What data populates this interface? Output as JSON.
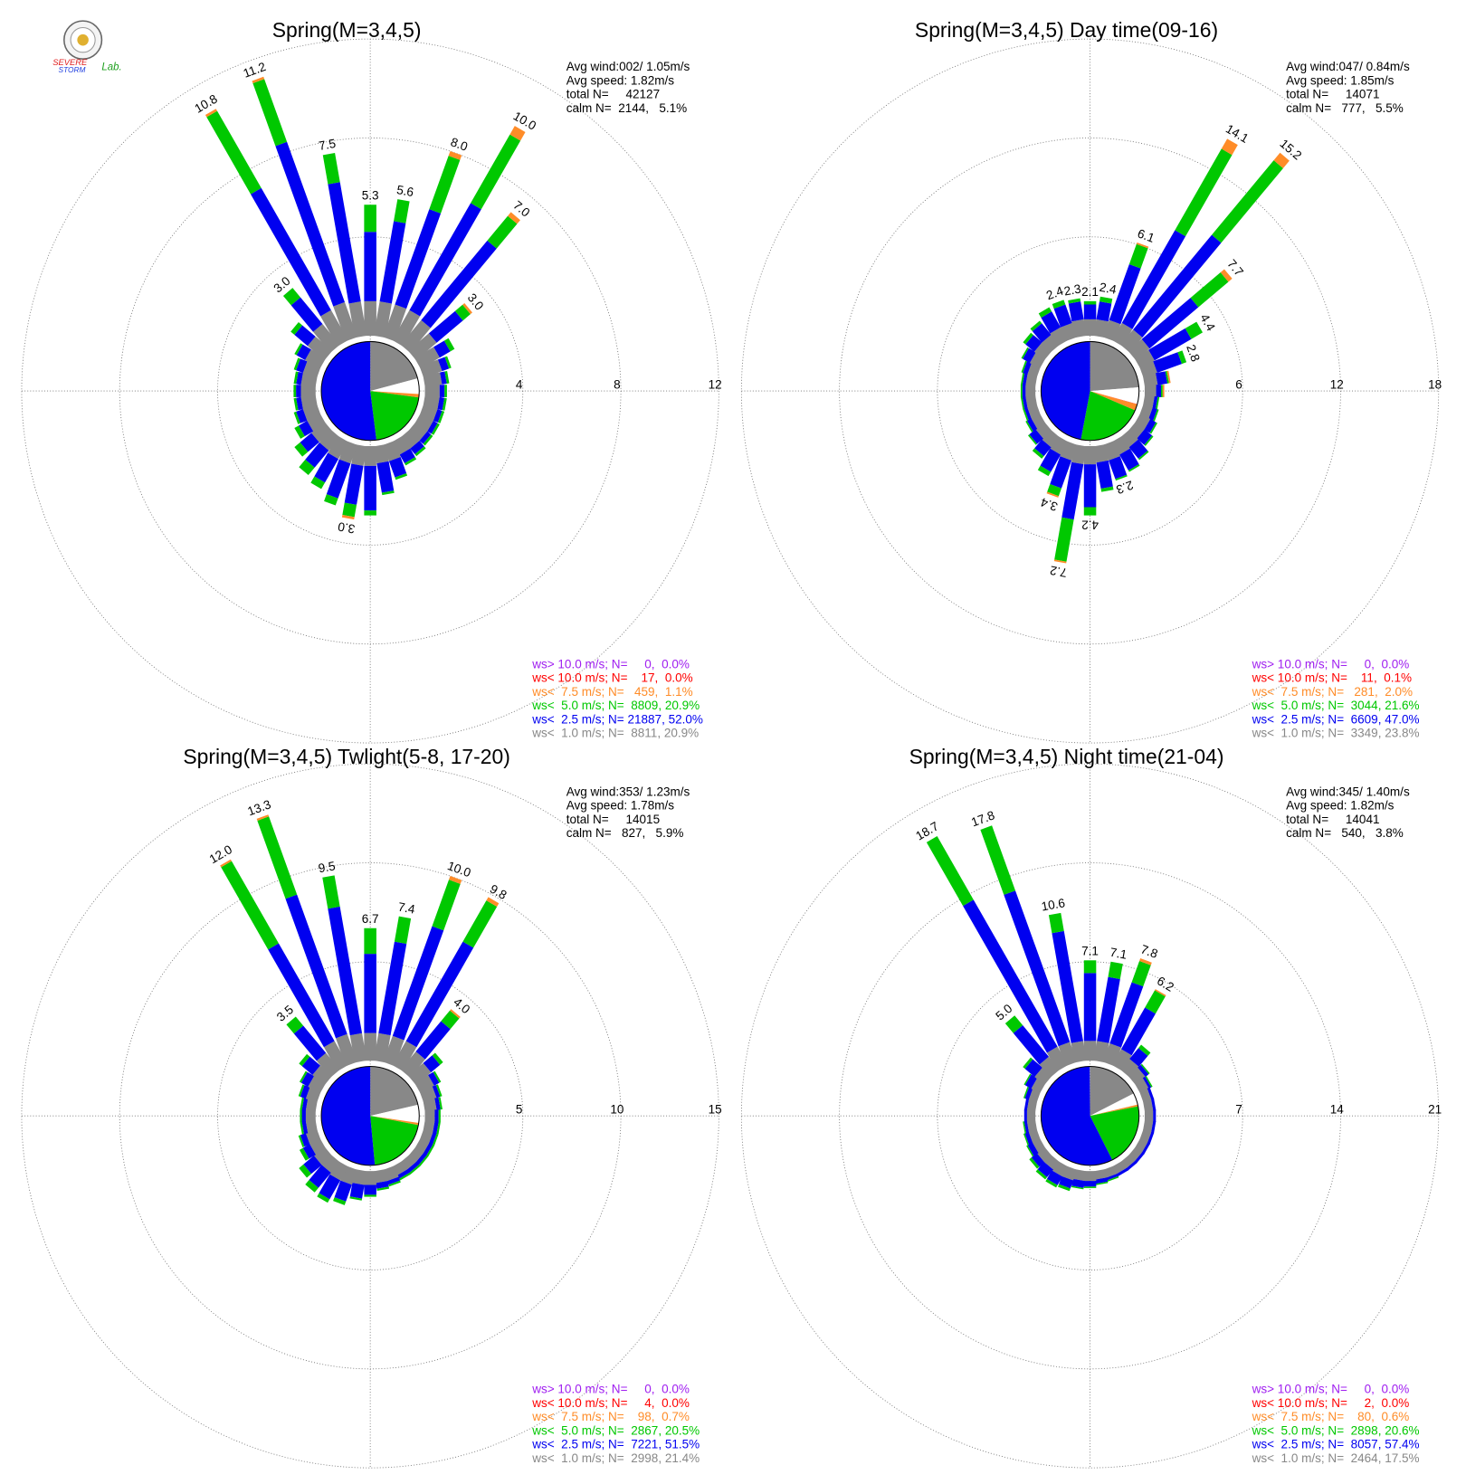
{
  "logo": [
    "SEVERE",
    "STORM",
    "Lab."
  ],
  "chart_data": [
    {
      "type": "windrose",
      "title": "Spring(M=3,4,5)",
      "info": [
        "Avg wind:002/ 1.05m/s",
        "Avg speed: 1.82m/s",
        "total N=     42127"
      ],
      "calm": {
        "label": "calm N=  2144,   5.1%",
        "pct": 5.1
      },
      "directions": [
        0,
        10,
        20,
        30,
        40,
        50,
        60,
        70,
        80,
        90,
        100,
        110,
        120,
        130,
        140,
        150,
        160,
        170,
        180,
        190,
        200,
        210,
        220,
        230,
        240,
        250,
        260,
        270,
        280,
        290,
        300,
        310,
        320,
        330,
        340,
        350
      ],
      "rlim": [
        0,
        12
      ],
      "rticks": [
        4,
        8,
        12
      ],
      "total_labels": [
        "5.3",
        "5.6",
        "8.0",
        "10.0",
        "7.0",
        "3.0",
        null,
        null,
        null,
        null,
        null,
        null,
        null,
        null,
        null,
        null,
        null,
        null,
        null,
        "3.0",
        null,
        null,
        null,
        null,
        null,
        null,
        null,
        null,
        null,
        null,
        null,
        null,
        "3.0",
        "10.8",
        "11.2",
        "7.5"
      ],
      "series": [
        {
          "name": "ws> 10.0 m/s; N=     0,  0.0%",
          "color": "#a020f0",
          "pct": 0.0
        },
        {
          "name": "ws< 10.0 m/s; N=    17,  0.0%",
          "color": "#ff0000",
          "pct": 0.0
        },
        {
          "name": "ws<  7.5 m/s; N=   459,  1.1%",
          "color": "#ff8c28",
          "pct": 1.1,
          "values": [
            0,
            0,
            0.2,
            0.4,
            0.2,
            0.1,
            0,
            0,
            0,
            0,
            0,
            0,
            0,
            0,
            0,
            0,
            0,
            0,
            0,
            0.1,
            0,
            0,
            0,
            0,
            0,
            0,
            0,
            0,
            0,
            0,
            0,
            0,
            0,
            0.1,
            0.1,
            0
          ]
        },
        {
          "name": "ws<  5.0 m/s; N=  8809, 20.9%",
          "color": "#00c800",
          "pct": 20.9,
          "values": [
            1.1,
            0.9,
            2.3,
            3.2,
            1.3,
            0.4,
            0.2,
            0.1,
            0.1,
            0.1,
            0.1,
            0.1,
            0.1,
            0.1,
            0.1,
            0.1,
            0.1,
            0.1,
            0.2,
            0.5,
            0.3,
            0.3,
            0.4,
            0.3,
            0.2,
            0.1,
            0.1,
            0.1,
            0.1,
            0.1,
            0.1,
            0.2,
            0.5,
            3.6,
            2.7,
            1.2
          ]
        },
        {
          "name": "ws<  2.5 m/s; N= 21887, 52.0%",
          "color": "#0000f0",
          "pct": 52.0,
          "values": [
            2.8,
            3.3,
            4.1,
            5.0,
            4.2,
            1.4,
            0.5,
            0.3,
            0.2,
            0.2,
            0.2,
            0.2,
            0.2,
            0.2,
            0.3,
            0.4,
            0.7,
            1.2,
            1.8,
            1.6,
            1.5,
            1.1,
            0.9,
            0.6,
            0.4,
            0.3,
            0.2,
            0.2,
            0.2,
            0.3,
            0.4,
            0.7,
            1.4,
            5.7,
            6.9,
            4.9
          ]
        },
        {
          "name": "ws<  1.0 m/s; N=  8811, 20.9%",
          "color": "#888888",
          "pct": 20.9,
          "values": [
            1.4,
            1.4,
            1.4,
            1.4,
            1.3,
            1.1,
            0.9,
            0.8,
            0.7,
            0.6,
            0.6,
            0.6,
            0.6,
            0.6,
            0.6,
            0.6,
            0.7,
            0.7,
            0.8,
            0.8,
            0.8,
            0.8,
            0.7,
            0.7,
            0.6,
            0.6,
            0.6,
            0.6,
            0.6,
            0.6,
            0.7,
            0.9,
            1.1,
            1.4,
            1.5,
            1.4
          ]
        }
      ]
    },
    {
      "type": "windrose",
      "title": "Spring(M=3,4,5) Day time(09-16)",
      "info": [
        "Avg wind:047/ 0.84m/s",
        "Avg speed: 1.85m/s",
        "total N=     14071"
      ],
      "calm": {
        "label": "calm N=   777,   5.5%",
        "pct": 5.5
      },
      "directions": [
        0,
        10,
        20,
        30,
        40,
        50,
        60,
        70,
        80,
        90,
        100,
        110,
        120,
        130,
        140,
        150,
        160,
        170,
        180,
        190,
        200,
        210,
        220,
        230,
        240,
        250,
        260,
        270,
        280,
        290,
        300,
        310,
        320,
        330,
        340,
        350
      ],
      "rlim": [
        0,
        18
      ],
      "rticks": [
        6,
        12,
        18
      ],
      "total_labels": [
        "2.1",
        "2.4",
        "6.1",
        "14.1",
        "15.2",
        "7.7",
        "4.4",
        "2.8",
        null,
        null,
        null,
        null,
        null,
        null,
        null,
        null,
        "2.3",
        null,
        "4.2",
        "7.2",
        "3.4",
        null,
        null,
        null,
        null,
        null,
        null,
        null,
        null,
        null,
        null,
        null,
        null,
        null,
        "2.4",
        "2.3"
      ],
      "series": [
        {
          "name": "ws> 10.0 m/s; N=     0,  0.0%",
          "color": "#a020f0",
          "pct": 0.0
        },
        {
          "name": "ws< 10.0 m/s; N=    11,  0.1%",
          "color": "#ff0000",
          "pct": 0.1
        },
        {
          "name": "ws<  7.5 m/s; N=   281,  2.0%",
          "color": "#ff8c28",
          "pct": 2.0,
          "values": [
            0,
            0,
            0.1,
            0.7,
            0.6,
            0.3,
            0,
            0,
            0.1,
            0.1,
            0,
            0,
            0,
            0,
            0,
            0,
            0,
            0,
            0,
            0.1,
            0.1,
            0,
            0,
            0,
            0,
            0,
            0,
            0,
            0,
            0,
            0,
            0,
            0,
            0,
            0,
            0
          ]
        },
        {
          "name": "ws<  5.0 m/s; N=  3044, 21.6%",
          "color": "#00c800",
          "pct": 21.6,
          "values": [
            0.2,
            0.3,
            1.3,
            5.7,
            5.9,
            2.4,
            0.8,
            0.3,
            0.1,
            0.1,
            0.1,
            0.1,
            0.1,
            0.1,
            0.1,
            0.1,
            0.1,
            0.2,
            0.5,
            2.6,
            0.5,
            0.3,
            0.2,
            0.1,
            0.1,
            0.1,
            0.1,
            0.1,
            0.1,
            0.1,
            0.1,
            0.2,
            0.2,
            0.3,
            0.3,
            0.2
          ]
        },
        {
          "name": "ws<  2.5 m/s; N=  6609, 47.0%",
          "color": "#0000f0",
          "pct": 47.0,
          "values": [
            0.9,
            1.1,
            3.6,
            6.5,
            7.5,
            3.9,
            2.6,
            1.6,
            0.6,
            0.3,
            0.2,
            0.3,
            0.4,
            0.6,
            0.9,
            1.1,
            1.2,
            1.6,
            2.6,
            3.4,
            1.8,
            1.2,
            0.7,
            0.5,
            0.3,
            0.2,
            0.2,
            0.2,
            0.2,
            0.3,
            0.5,
            0.7,
            0.9,
            1.1,
            1.2,
            1.1
          ]
        },
        {
          "name": "ws<  1.0 m/s; N=  3349, 23.8%",
          "color": "#888888",
          "pct": 23.8,
          "values": [
            1.0,
            1.0,
            1.1,
            1.2,
            1.2,
            1.1,
            1.0,
            0.9,
            0.8,
            0.7,
            0.6,
            0.6,
            0.7,
            0.7,
            0.8,
            0.9,
            1.0,
            1.0,
            1.1,
            1.1,
            1.0,
            0.9,
            0.8,
            0.7,
            0.6,
            0.6,
            0.6,
            0.6,
            0.6,
            0.6,
            0.7,
            0.8,
            0.8,
            0.9,
            0.9,
            1.0
          ]
        }
      ]
    },
    {
      "type": "windrose",
      "title": "Spring(M=3,4,5) Twlight(5-8, 17-20)",
      "info": [
        "Avg wind:353/ 1.23m/s",
        "Avg speed: 1.78m/s",
        "total N=     14015"
      ],
      "calm": {
        "label": "calm N=   827,   5.9%",
        "pct": 5.9
      },
      "directions": [
        0,
        10,
        20,
        30,
        40,
        50,
        60,
        70,
        80,
        90,
        100,
        110,
        120,
        130,
        140,
        150,
        160,
        170,
        180,
        190,
        200,
        210,
        220,
        230,
        240,
        250,
        260,
        270,
        280,
        290,
        300,
        310,
        320,
        330,
        340,
        350
      ],
      "rlim": [
        0,
        15
      ],
      "rticks": [
        5,
        10,
        15
      ],
      "total_labels": [
        "6.7",
        "7.4",
        "10.0",
        "9.8",
        "4.0",
        null,
        null,
        null,
        null,
        null,
        null,
        null,
        null,
        null,
        null,
        null,
        null,
        null,
        null,
        null,
        null,
        null,
        null,
        null,
        null,
        null,
        null,
        null,
        null,
        null,
        null,
        null,
        "3.5",
        "12.0",
        "13.3",
        "9.5"
      ],
      "series": [
        {
          "name": "ws> 10.0 m/s; N=     0,  0.0%",
          "color": "#a020f0",
          "pct": 0.0
        },
        {
          "name": "ws< 10.0 m/s; N=     4,  0.0%",
          "color": "#ff0000",
          "pct": 0.0
        },
        {
          "name": "ws<  7.5 m/s; N=    98,  0.7%",
          "color": "#ff8c28",
          "pct": 0.7,
          "values": [
            0,
            0,
            0.2,
            0.2,
            0.1,
            0,
            0,
            0,
            0,
            0,
            0,
            0,
            0,
            0,
            0,
            0,
            0,
            0,
            0,
            0,
            0,
            0,
            0,
            0,
            0,
            0,
            0,
            0,
            0,
            0,
            0,
            0,
            0,
            0.1,
            0.1,
            0
          ]
        },
        {
          "name": "ws<  5.0 m/s; N=  2867, 20.5%",
          "color": "#00c800",
          "pct": 20.5,
          "values": [
            1.3,
            1.3,
            2.5,
            2.4,
            0.7,
            0.2,
            0.1,
            0.1,
            0.1,
            0.1,
            0.1,
            0.1,
            0.1,
            0.1,
            0.1,
            0.1,
            0.1,
            0.1,
            0.1,
            0.1,
            0.2,
            0.2,
            0.3,
            0.3,
            0.2,
            0.1,
            0.1,
            0.1,
            0.1,
            0.1,
            0.1,
            0.2,
            0.6,
            4.8,
            4.2,
            1.6
          ]
        },
        {
          "name": "ws<  2.5 m/s; N=  7221, 51.5%",
          "color": "#0000f0",
          "pct": 51.5,
          "values": [
            4.0,
            4.7,
            5.9,
            5.8,
            2.0,
            0.6,
            0.3,
            0.2,
            0.2,
            0.2,
            0.2,
            0.2,
            0.2,
            0.2,
            0.2,
            0.2,
            0.2,
            0.3,
            0.5,
            0.7,
            0.9,
            1.1,
            1.0,
            0.7,
            0.4,
            0.3,
            0.2,
            0.2,
            0.2,
            0.3,
            0.4,
            0.7,
            1.8,
            5.7,
            7.5,
            6.5
          ]
        },
        {
          "name": "ws<  1.0 m/s; N=  2998, 21.4%",
          "color": "#888888",
          "pct": 21.4,
          "values": [
            1.4,
            1.4,
            1.4,
            1.4,
            1.2,
            1.0,
            0.8,
            0.7,
            0.6,
            0.5,
            0.5,
            0.5,
            0.5,
            0.5,
            0.5,
            0.5,
            0.6,
            0.6,
            0.7,
            0.7,
            0.8,
            0.8,
            0.7,
            0.7,
            0.6,
            0.6,
            0.5,
            0.5,
            0.5,
            0.6,
            0.7,
            0.8,
            1.1,
            1.4,
            1.5,
            1.4
          ]
        }
      ]
    },
    {
      "type": "windrose",
      "title": "Spring(M=3,4,5) Night time(21-04)",
      "info": [
        "Avg wind:345/ 1.40m/s",
        "Avg speed: 1.82m/s",
        "total N=     14041"
      ],
      "calm": {
        "label": "calm N=   540,   3.8%",
        "pct": 3.8
      },
      "directions": [
        0,
        10,
        20,
        30,
        40,
        50,
        60,
        70,
        80,
        90,
        100,
        110,
        120,
        130,
        140,
        150,
        160,
        170,
        180,
        190,
        200,
        210,
        220,
        230,
        240,
        250,
        260,
        270,
        280,
        290,
        300,
        310,
        320,
        330,
        340,
        350
      ],
      "rlim": [
        0,
        21
      ],
      "rticks": [
        7,
        14,
        21
      ],
      "total_labels": [
        "7.1",
        "7.1",
        "7.8",
        "6.2",
        null,
        null,
        null,
        null,
        null,
        null,
        null,
        null,
        null,
        null,
        null,
        null,
        null,
        null,
        null,
        null,
        null,
        null,
        null,
        null,
        null,
        null,
        null,
        null,
        null,
        null,
        null,
        null,
        "5.0",
        "18.7",
        "17.8",
        "10.6"
      ],
      "series": [
        {
          "name": "ws> 10.0 m/s; N=     0,  0.0%",
          "color": "#a020f0",
          "pct": 0.0
        },
        {
          "name": "ws< 10.0 m/s; N=     2,  0.0%",
          "color": "#ff0000",
          "pct": 0.0
        },
        {
          "name": "ws<  7.5 m/s; N=    80,  0.6%",
          "color": "#ff8c28",
          "pct": 0.6,
          "values": [
            0,
            0,
            0.2,
            0.1,
            0,
            0,
            0,
            0,
            0,
            0,
            0,
            0,
            0,
            0,
            0,
            0,
            0,
            0,
            0,
            0,
            0,
            0,
            0,
            0,
            0,
            0,
            0,
            0,
            0,
            0,
            0,
            0,
            0,
            0,
            0,
            0
          ]
        },
        {
          "name": "ws<  5.0 m/s; N=  2898, 20.6%",
          "color": "#00c800",
          "pct": 20.6,
          "values": [
            0.9,
            1.1,
            1.6,
            1.4,
            0.3,
            0.1,
            0.1,
            0,
            0,
            0,
            0,
            0,
            0,
            0,
            0,
            0,
            0.1,
            0.1,
            0.1,
            0.1,
            0.2,
            0.2,
            0.2,
            0.2,
            0.1,
            0.1,
            0.1,
            0,
            0,
            0.1,
            0.1,
            0.2,
            0.9,
            5.2,
            4.9,
            1.3
          ]
        },
        {
          "name": "ws<  2.5 m/s; N=  8057, 57.4%",
          "color": "#0000f0",
          "pct": 57.4,
          "values": [
            4.8,
            4.6,
            4.6,
            3.4,
            1.0,
            0.3,
            0.2,
            0.2,
            0.2,
            0.2,
            0.2,
            0.2,
            0.2,
            0.2,
            0.2,
            0.2,
            0.2,
            0.3,
            0.4,
            0.5,
            0.6,
            0.7,
            0.7,
            0.5,
            0.4,
            0.3,
            0.2,
            0.2,
            0.2,
            0.3,
            0.5,
            0.9,
            2.9,
            12.0,
            11.4,
            7.9
          ]
        },
        {
          "name": "ws<  1.0 m/s; N=  2464, 17.5%",
          "color": "#888888",
          "pct": 17.5,
          "values": [
            1.4,
            1.4,
            1.4,
            1.3,
            1.0,
            0.9,
            0.7,
            0.6,
            0.6,
            0.6,
            0.6,
            0.6,
            0.6,
            0.6,
            0.6,
            0.6,
            0.6,
            0.6,
            0.7,
            0.7,
            0.8,
            0.8,
            0.7,
            0.7,
            0.6,
            0.6,
            0.6,
            0.6,
            0.6,
            0.6,
            0.7,
            0.9,
            1.2,
            1.5,
            1.5,
            1.4
          ]
        }
      ]
    }
  ]
}
